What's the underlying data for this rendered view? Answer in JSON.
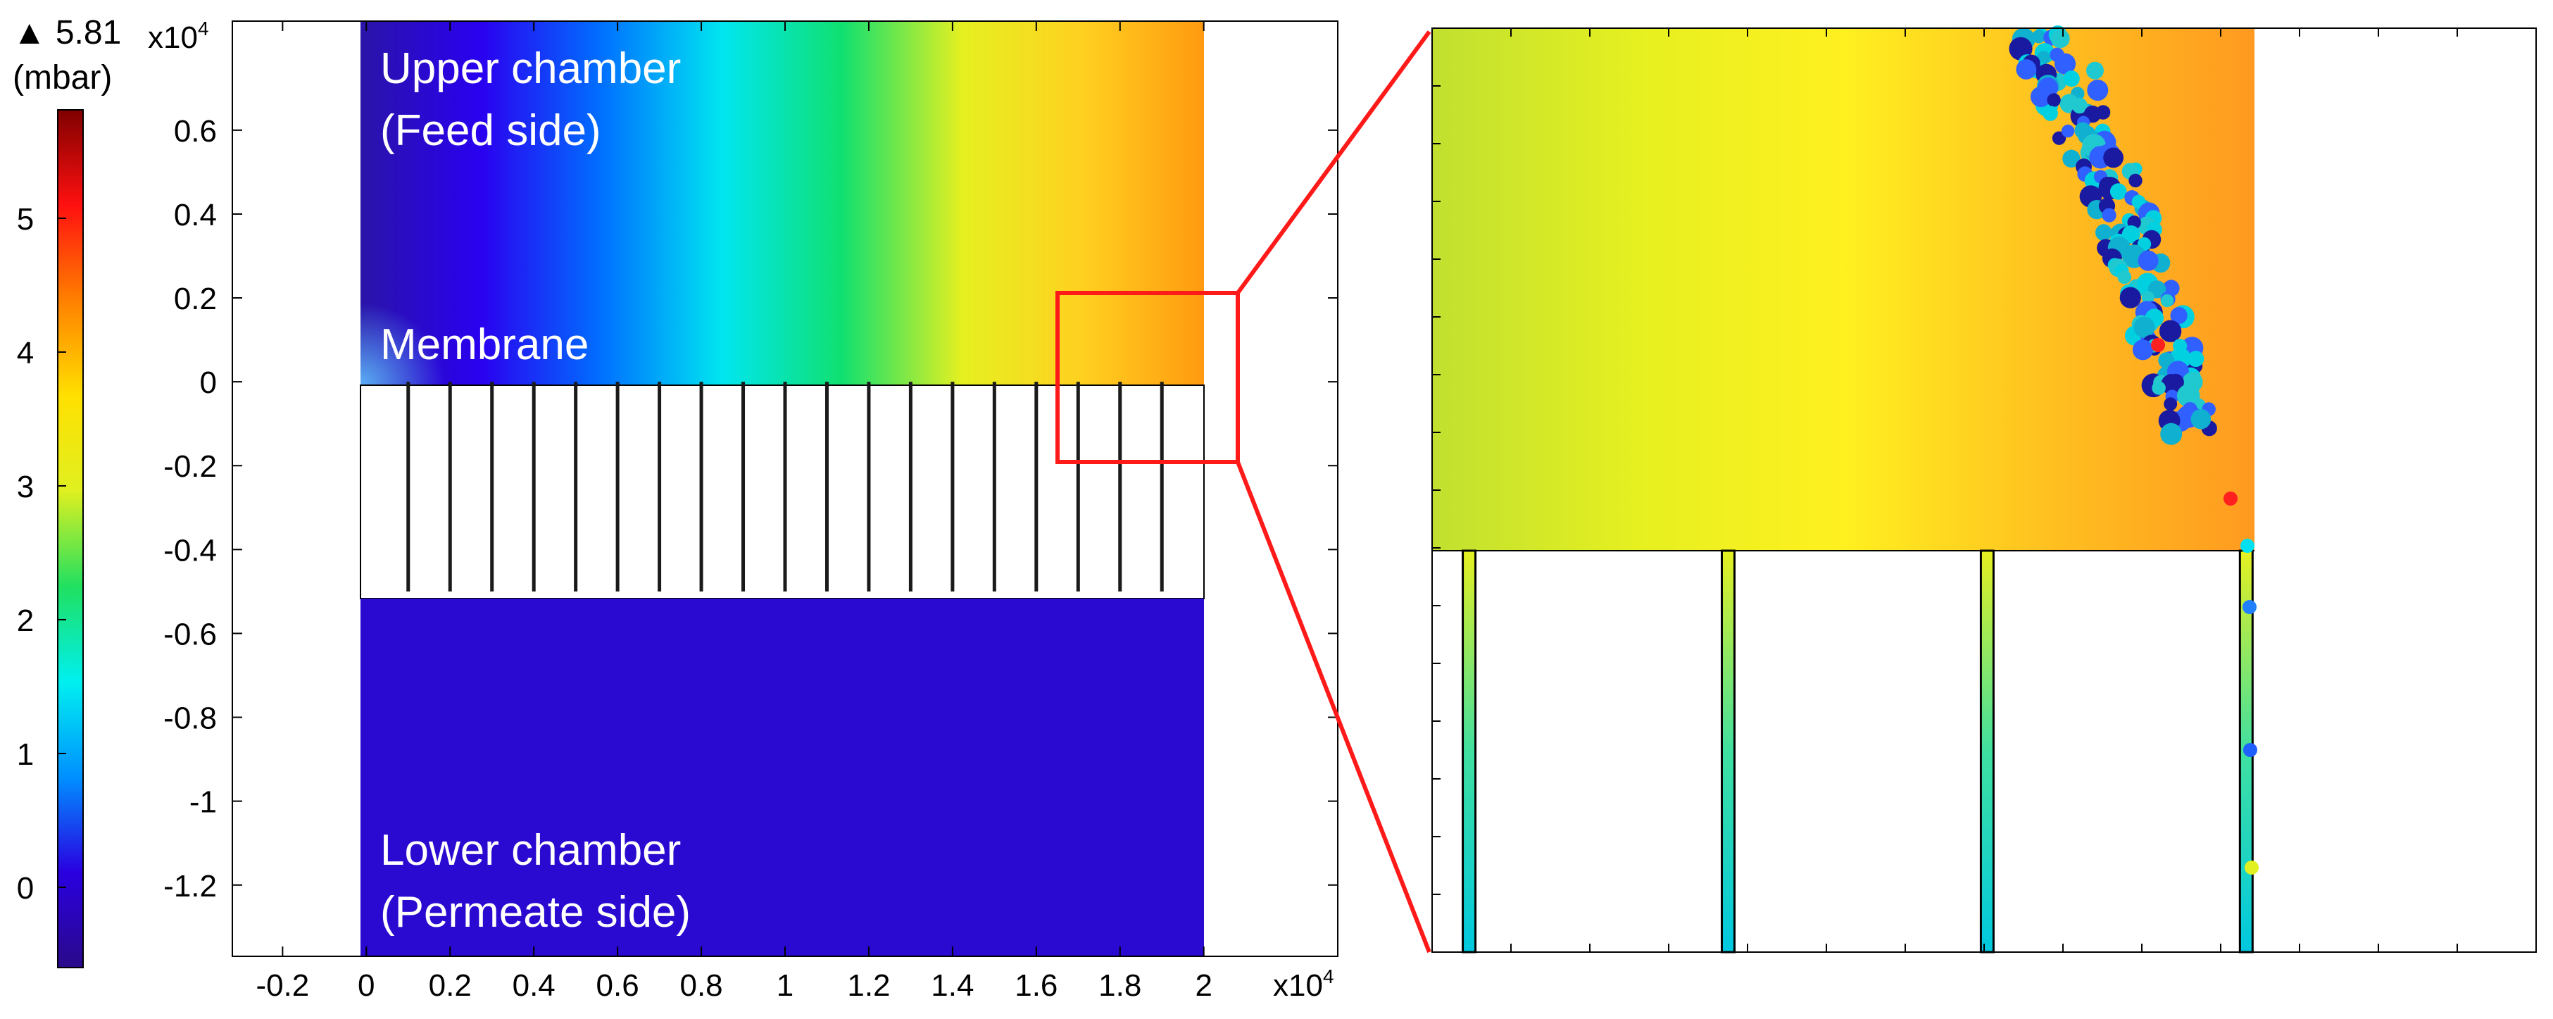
{
  "colorbar": {
    "max_label": "▲ 5.81",
    "unit_label": "(mbar)",
    "colormap": [
      "#2a0a8a",
      "#2a00e0",
      "#0090ff",
      "#00f0f0",
      "#20e060",
      "#e0f020",
      "#ffe000",
      "#ff8000",
      "#ff1010",
      "#800000"
    ],
    "ticks": [
      {
        "value": 0,
        "label": "0"
      },
      {
        "value": 1,
        "label": "1"
      },
      {
        "value": 2,
        "label": "2"
      },
      {
        "value": 3,
        "label": "3"
      },
      {
        "value": 4,
        "label": "4"
      },
      {
        "value": 5,
        "label": "5"
      }
    ]
  },
  "main_plot": {
    "x_ticks": [
      "-0.2",
      "0",
      "0.2",
      "0.4",
      "0.6",
      "0.8",
      "1",
      "1.2",
      "1.4",
      "1.6",
      "1.8",
      "2"
    ],
    "y_ticks": [
      "0.6",
      "0.4",
      "0.2",
      "0",
      "-0.2",
      "-0.4",
      "-0.6",
      "-0.8",
      "-1",
      "-1.2"
    ],
    "x_multiplier": "x10",
    "y_multiplier": "x10",
    "exponent": "4",
    "labels": {
      "upper_1": "Upper chamber",
      "upper_2": "(Feed side)",
      "membrane": "Membrane",
      "lower_1": "Lower chamber",
      "lower_2": "(Permeate side)"
    },
    "gradient_colors": [
      "#2a14a8",
      "#2a00f0",
      "#0070ff",
      "#00e6f0",
      "#10e070",
      "#e6f020",
      "#ffd020",
      "#ff9a10"
    ],
    "lower_chamber_color": "#2a0ad0",
    "highlight_color": "#ff1a1a"
  },
  "chart_data": {
    "type": "heatmap",
    "description_units": "pressure (mbar)",
    "colorbar_range": [
      -0.6,
      5.81
    ],
    "x_range": [
      -0.32,
      2.32
    ],
    "y_range": [
      -1.37,
      0.86
    ],
    "domain_x": [
      0,
      2
    ],
    "upper_chamber_y": [
      0,
      0.86
    ],
    "membrane_y": [
      -0.5,
      0
    ],
    "lower_chamber_y": [
      -1.37,
      -0.5
    ],
    "membrane_channels": 20,
    "zoom_box": {
      "x": [
        1.65,
        2.08
      ],
      "y": [
        -0.18,
        0.22
      ]
    }
  },
  "zoom_plot": {
    "gradient_colors": [
      "#c0e030",
      "#e6f020",
      "#fff020",
      "#ffc020",
      "#ff9a20"
    ],
    "particle_colors": [
      "#1a1aa0",
      "#00d0e0",
      "#20c8d0",
      "#3060ff",
      "#10b0d0"
    ],
    "channel_positions": [
      0.045,
      0.36,
      0.675,
      0.99
    ],
    "feed_fraction": 0.57
  }
}
